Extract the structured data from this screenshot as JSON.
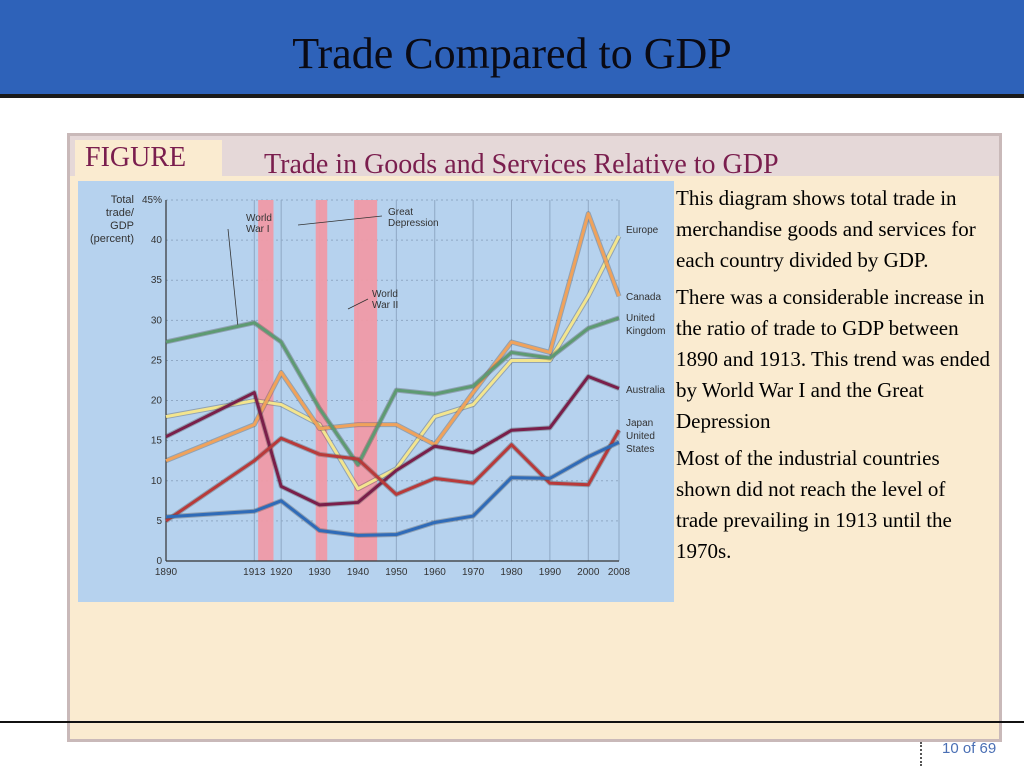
{
  "slide": {
    "title": "Trade Compared to GDP",
    "figure_label": "FIGURE",
    "figure_title": "Trade in Goods and Services Relative to GDP",
    "paragraphs": [
      "This diagram shows total trade in merchandise goods and services for each country divided by GDP.",
      "There was a considerable increase in the ratio of trade to GDP between 1890 and 1913. This trend was ended by World War I and the Great Depression",
      "Most of the industrial countries shown did not reach the level of trade prevailing in 1913 until the 1970s."
    ],
    "page_indicator": "10 of 69"
  },
  "chart_data": {
    "type": "line",
    "ylabel": "Total trade/ GDP (percent)",
    "y_tick_labels": [
      "0",
      "5",
      "10",
      "15",
      "20",
      "25",
      "30",
      "35",
      "40",
      "45%"
    ],
    "ylim": [
      0,
      45
    ],
    "x": [
      1890,
      1913,
      1920,
      1930,
      1940,
      1950,
      1960,
      1970,
      1980,
      1990,
      2000,
      2008
    ],
    "x_tick_labels": [
      "1890",
      "1913",
      "1920",
      "1930",
      "1940",
      "1950",
      "1960",
      "1970",
      "1980",
      "1990",
      "2000",
      "2008"
    ],
    "grid": true,
    "annotations": [
      {
        "text": "World War I",
        "from": 1914,
        "to": 1918
      },
      {
        "text": "Great Depression",
        "from": 1929,
        "to": 1932
      },
      {
        "text": "World War II",
        "from": 1939,
        "to": 1945
      }
    ],
    "series": [
      {
        "name": "Europe",
        "color": "#f3e58e",
        "values": [
          18,
          20,
          19.5,
          17,
          9,
          11.5,
          18,
          19.5,
          25,
          25,
          33,
          40.5
        ]
      },
      {
        "name": "Canada",
        "color": "#f0a25b",
        "values": [
          12.5,
          17,
          23.5,
          16.5,
          17,
          17,
          14.5,
          21,
          27.3,
          26,
          43.3,
          33
        ]
      },
      {
        "name": "United Kingdom",
        "color": "#5e9a72",
        "values": [
          27.3,
          29.7,
          27.3,
          19,
          12,
          21.3,
          20.8,
          21.8,
          26,
          25.3,
          29,
          30.3
        ]
      },
      {
        "name": "Australia",
        "color": "#7a1f4a",
        "values": [
          15.5,
          21,
          9.3,
          7,
          7.3,
          11.3,
          14.3,
          13.5,
          16.3,
          16.6,
          23,
          21.5
        ]
      },
      {
        "name": "Japan",
        "color": "#b83a3a",
        "values": [
          5,
          12.5,
          15.3,
          13.3,
          12.7,
          8.3,
          10.3,
          9.7,
          14.5,
          9.7,
          9.5,
          16.3
        ]
      },
      {
        "name": "United States",
        "color": "#2f6bb8",
        "values": [
          5.5,
          6.2,
          7.5,
          3.8,
          3.2,
          3.3,
          4.8,
          5.6,
          10.4,
          10.3,
          13,
          14.8
        ]
      }
    ]
  }
}
